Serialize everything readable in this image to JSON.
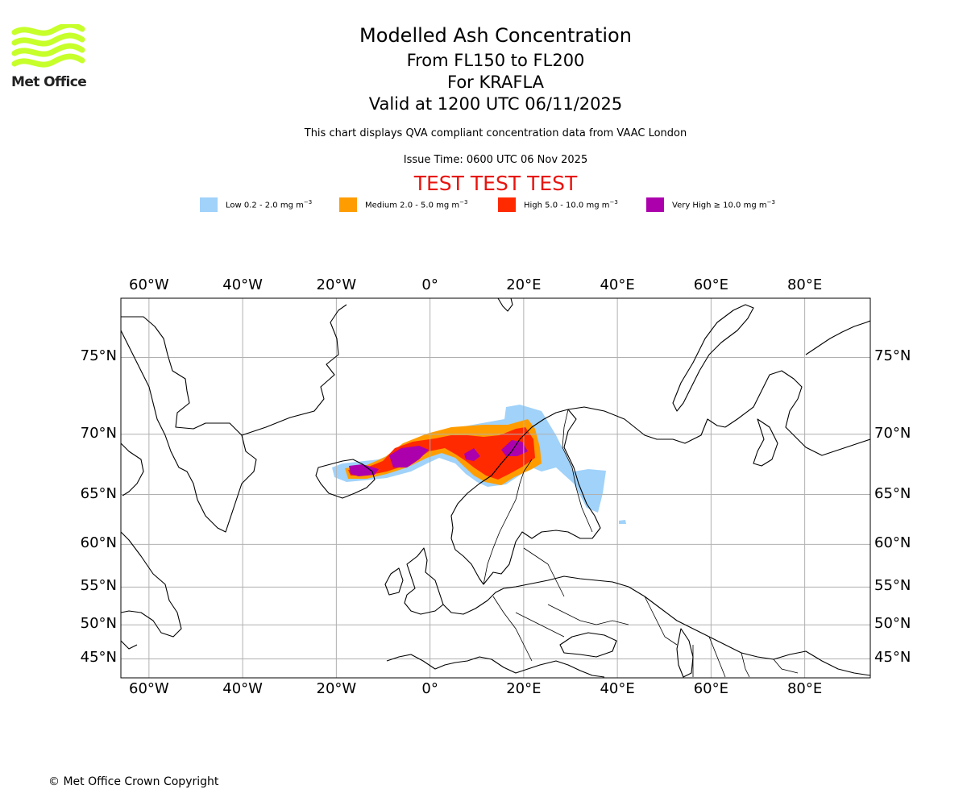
{
  "header": {
    "logo_text": "Met Office",
    "logo_color": "#c6ff2a",
    "title": "Modelled Ash Concentration",
    "subtitle_levels": "From FL150 to FL200",
    "subtitle_volcano": "For KRAFLA",
    "subtitle_valid": "Valid at 1200 UTC 06/11/2025",
    "description": "This chart displays QVA compliant concentration data from VAAC London",
    "issue_time": "Issue Time: 0600 UTC 06 Nov 2025",
    "test_banner": "TEST TEST TEST"
  },
  "legend": [
    {
      "label": "Low 0.2 - 2.0 mg m",
      "sup": "−3",
      "color": "#a0d2fa"
    },
    {
      "label": "Medium 2.0 - 5.0 mg m",
      "sup": "−3",
      "color": "#ff9d00"
    },
    {
      "label": "High 5.0 - 10.0 mg m",
      "sup": "−3",
      "color": "#ff2a00"
    },
    {
      "label": "Very High  ≥  10.0 mg m",
      "sup": "−3",
      "color": "#ad00ad"
    }
  ],
  "map": {
    "lon_labels": [
      "60°W",
      "40°W",
      "20°W",
      "0°",
      "20°E",
      "40°E",
      "60°E",
      "80°E"
    ],
    "lon_values": [
      -60,
      -40,
      -20,
      0,
      20,
      40,
      60,
      80
    ],
    "lat_labels": [
      "75°N",
      "70°N",
      "65°N",
      "60°N",
      "55°N",
      "50°N",
      "45°N"
    ],
    "lat_values": [
      75,
      70,
      65,
      60,
      55,
      50,
      45
    ],
    "lon_range": [
      -66,
      94
    ],
    "lat_range": [
      42,
      78
    ]
  },
  "footer": {
    "copyright": "© Met Office Crown Copyright"
  }
}
